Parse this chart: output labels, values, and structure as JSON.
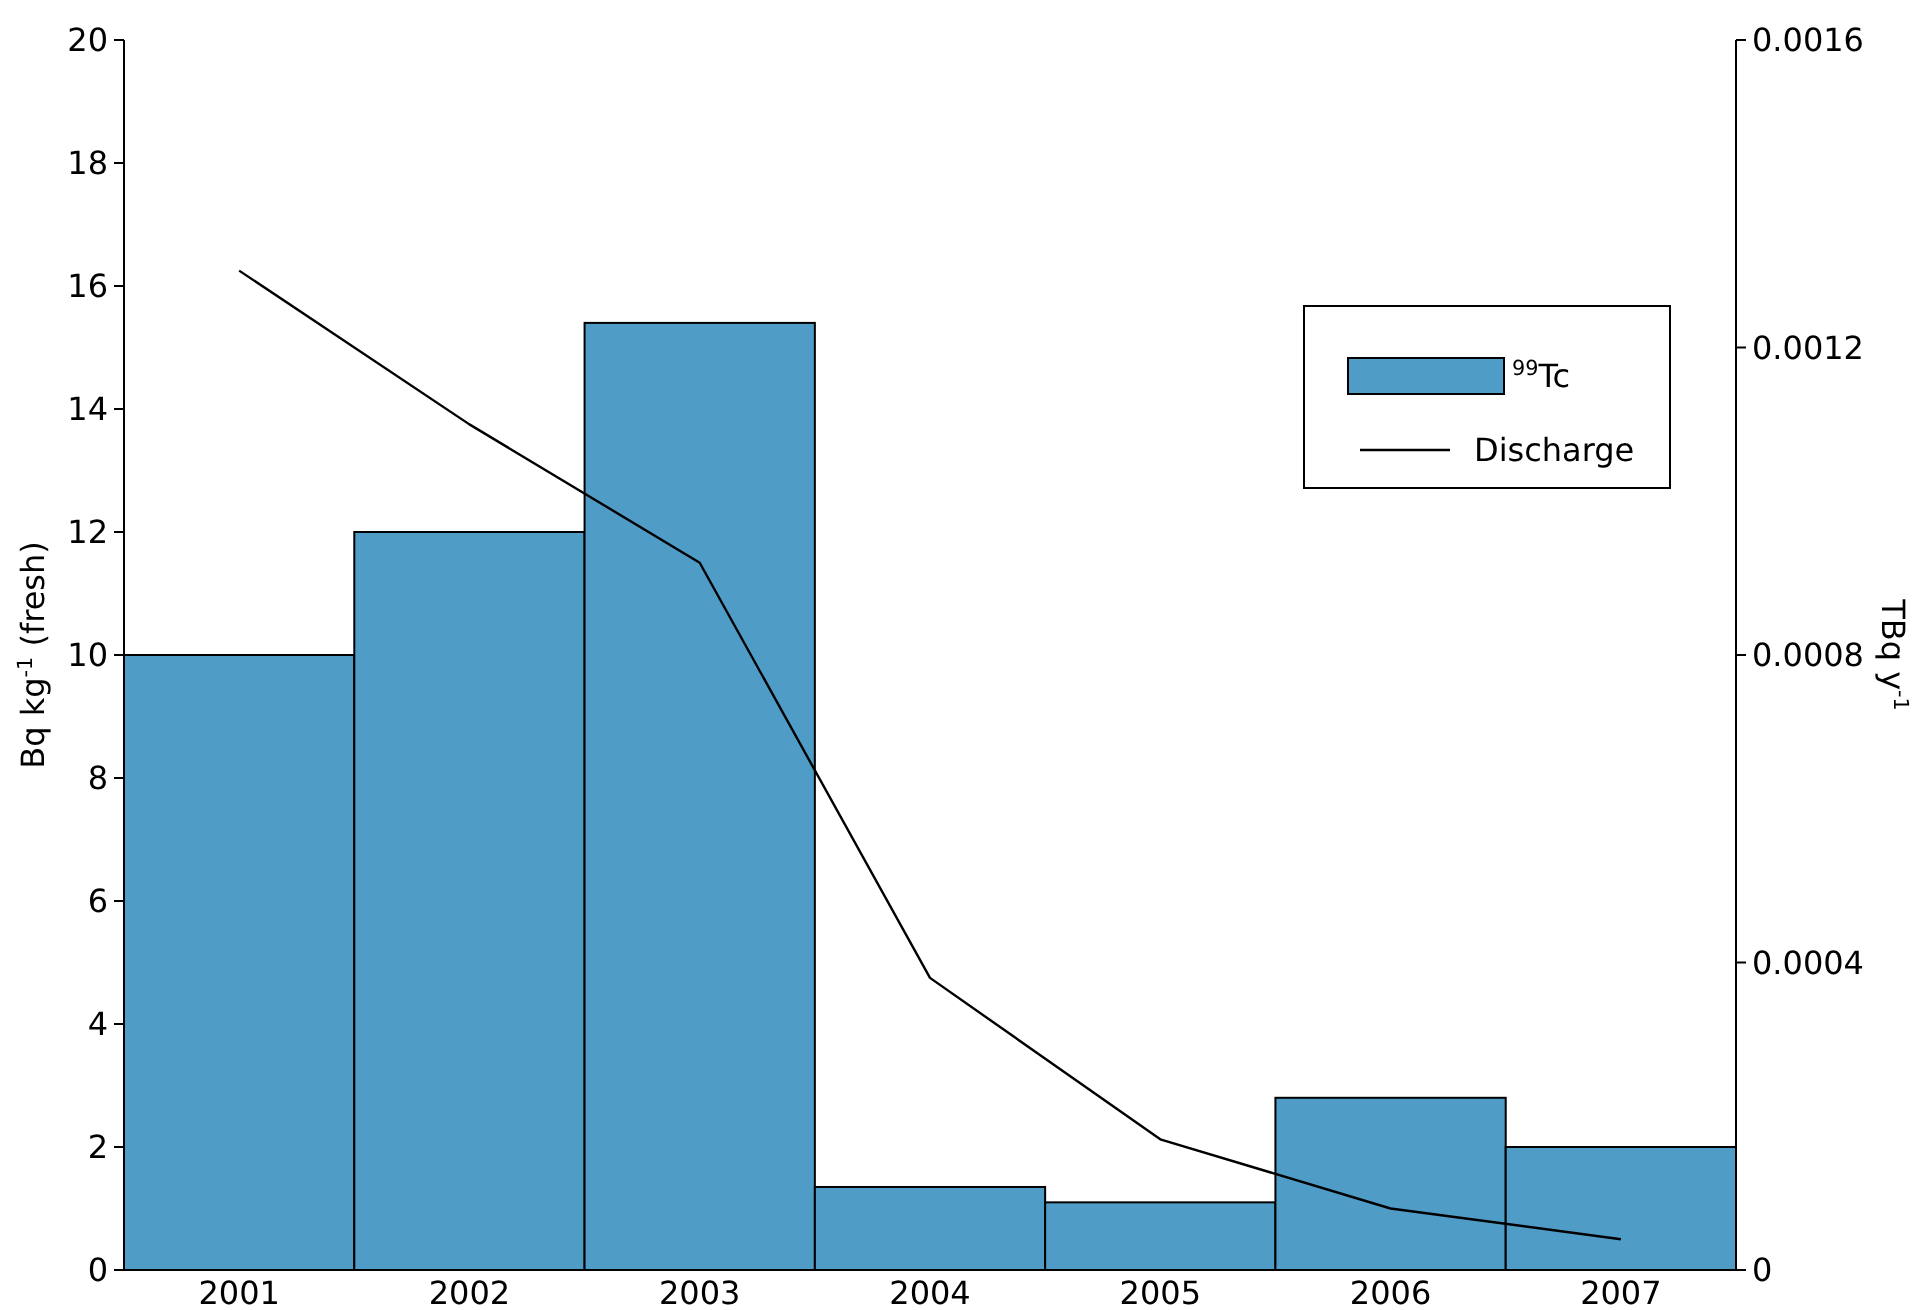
{
  "chart_data": {
    "type": "bar",
    "categories": [
      "2001",
      "2002",
      "2003",
      "2004",
      "2005",
      "2006",
      "2007"
    ],
    "series": [
      {
        "name": "$^{99}$Tc",
        "color": "#4f9cc7",
        "values": [
          10,
          12,
          15.4,
          1.35,
          1.1,
          2.8,
          2
        ]
      },
      {
        "name": "Discharge",
        "type": "line",
        "axis": "y2",
        "color": "#000000",
        "values": [
          0.0013,
          0.0011,
          0.00092,
          0.00038,
          0.00017,
          8e-05,
          4e-05
        ]
      }
    ],
    "ylabel": "Bq kg$^{-1}$ (fresh)",
    "y2label": "TBq y$^{-1}$",
    "ylim": [
      0,
      20
    ],
    "yticks": [
      0,
      2,
      4,
      6,
      8,
      10,
      12,
      14,
      16,
      18,
      20
    ],
    "y2lim": [
      0,
      0.0016
    ],
    "y2ticks": [
      0,
      0.0004,
      0.0008,
      0.0012,
      0.0016
    ],
    "legend": "top right",
    "grid": false
  }
}
